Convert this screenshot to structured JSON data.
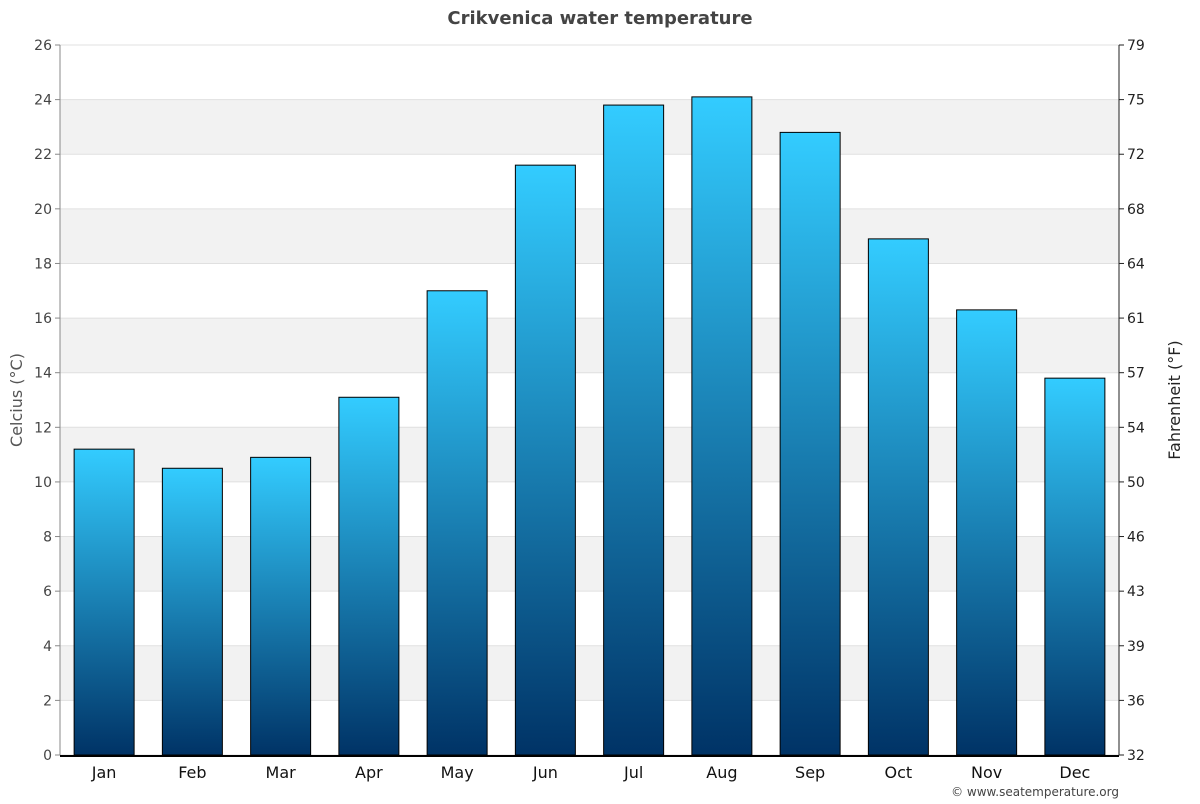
{
  "chart_data": {
    "type": "bar",
    "title": "Crikvenica water temperature",
    "ylabel": "Celcius (°C)",
    "ylabel_right": "Fahrenheit (°F)",
    "categories": [
      "Jan",
      "Feb",
      "Mar",
      "Apr",
      "May",
      "Jun",
      "Jul",
      "Aug",
      "Sep",
      "Oct",
      "Nov",
      "Dec"
    ],
    "values": [
      11.2,
      10.5,
      10.9,
      13.1,
      17.0,
      21.6,
      23.8,
      24.1,
      22.8,
      18.9,
      16.3,
      13.8
    ],
    "ylim": [
      0,
      26
    ],
    "yticks": [
      0,
      2,
      4,
      6,
      8,
      10,
      12,
      14,
      16,
      18,
      20,
      22,
      24,
      26
    ],
    "yticks_right": [
      "32",
      "36",
      "39",
      "43",
      "46",
      "50",
      "54",
      "57",
      "61",
      "64",
      "68",
      "72",
      "75",
      "79"
    ],
    "grid": true,
    "colors": {
      "bar_top": "#33ccff",
      "bar_bottom": "#003366",
      "band": "#f2f2f2"
    }
  },
  "credit": "© www.seatemperature.org"
}
